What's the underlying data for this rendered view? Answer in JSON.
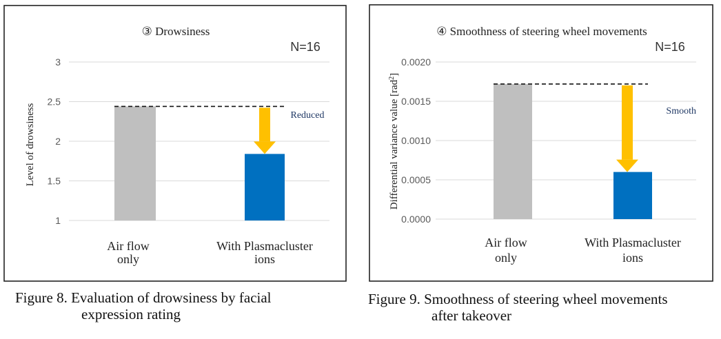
{
  "charts": [
    {
      "title": "③ Drowsiness",
      "n_label": "N=16",
      "annotation": "Reduced",
      "caption_line1": "Figure 8. Evaluation of drowsiness by facial",
      "caption_line2": "expression rating"
    },
    {
      "title": "④ Smoothness of steering wheel movements",
      "n_label": "N=16",
      "annotation": "Smooth",
      "caption_line1": "Figure 9. Smoothness of steering wheel movements",
      "caption_line2": "after takeover"
    }
  ],
  "chart_data": [
    {
      "type": "bar",
      "title": "③ Drowsiness",
      "categories": [
        "Air flow only",
        "With Plasmacluster ions"
      ],
      "values": [
        2.44,
        1.84
      ],
      "colors": [
        "#bfbfbf",
        "#0070c0"
      ],
      "ylabel": "Level of drowsiness",
      "ylim": [
        1,
        3
      ],
      "yticks": [
        "1",
        "1.5",
        "2",
        "2.5",
        "3"
      ],
      "grid": true,
      "annotations": [
        "N=16",
        "Reduced"
      ],
      "arrow_color": "#ffc000"
    },
    {
      "type": "bar",
      "title": "④ Smoothness of steering wheel movements",
      "categories": [
        "Air flow only",
        "With Plasmacluster ions"
      ],
      "values": [
        0.00172,
        0.0006
      ],
      "colors": [
        "#bfbfbf",
        "#0070c0"
      ],
      "ylabel": "Differential variance value [rad²]",
      "ylim": [
        0,
        0.002
      ],
      "yticks": [
        "0.0000",
        "0.0005",
        "0.0010",
        "0.0015",
        "0.0020"
      ],
      "grid": true,
      "annotations": [
        "N=16",
        "Smooth"
      ],
      "arrow_color": "#ffc000"
    }
  ]
}
